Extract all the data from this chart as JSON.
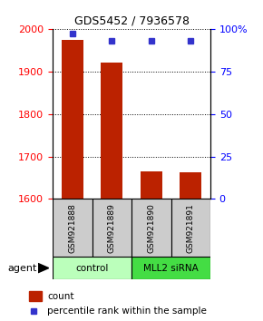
{
  "title": "GDS5452 / 7936578",
  "samples": [
    "GSM921888",
    "GSM921889",
    "GSM921890",
    "GSM921891"
  ],
  "bar_values": [
    1975,
    1920,
    1665,
    1662
  ],
  "percentile_values": [
    97,
    93,
    93,
    93
  ],
  "ylim_left": [
    1600,
    2000
  ],
  "ylim_right": [
    0,
    100
  ],
  "yticks_left": [
    1600,
    1700,
    1800,
    1900,
    2000
  ],
  "yticks_right": [
    0,
    25,
    50,
    75,
    100
  ],
  "yticklabels_right": [
    "0",
    "25",
    "50",
    "75",
    "100%"
  ],
  "bar_color": "#bb2200",
  "dot_color": "#3333cc",
  "bar_width": 0.55,
  "groups": [
    {
      "label": "control",
      "samples": [
        0,
        1
      ],
      "color": "#bbffbb"
    },
    {
      "label": "MLL2 siRNA",
      "samples": [
        2,
        3
      ],
      "color": "#44dd44"
    }
  ],
  "xlabel_agent": "agent",
  "legend_count_label": "count",
  "legend_percentile_label": "percentile rank within the sample",
  "sample_box_color": "#cccccc",
  "background_color": "#ffffff"
}
